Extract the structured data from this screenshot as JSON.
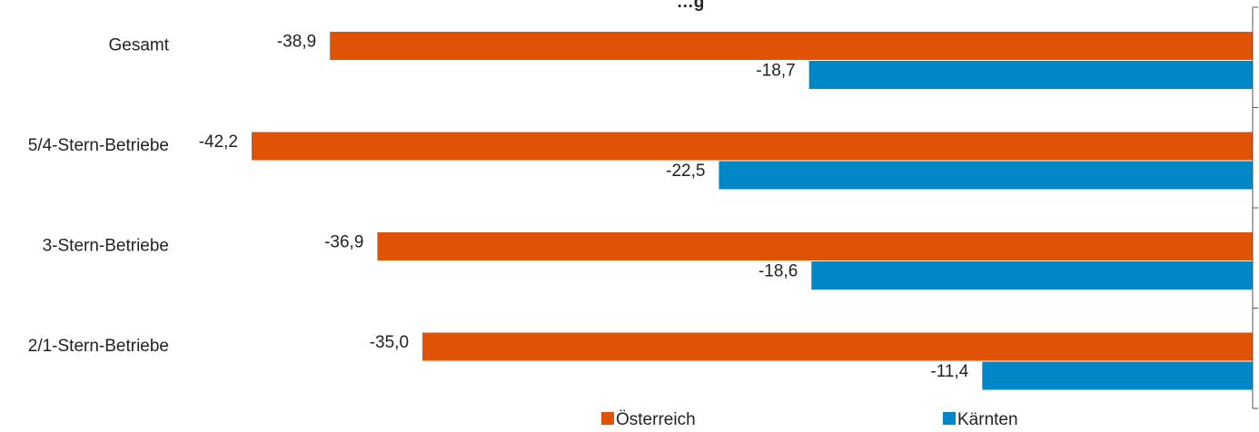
{
  "chart_data": {
    "type": "bar",
    "orientation": "horizontal",
    "title": "…g",
    "categories": [
      "Gesamt",
      "5/4-Stern-Betriebe",
      "3-Stern-Betriebe",
      "2/1-Stern-Betriebe"
    ],
    "series": [
      {
        "name": "Österreich",
        "values": [
          -38.9,
          -42.2,
          -36.9,
          -35.0
        ],
        "labels": [
          "-38,9",
          "-42,2",
          "-36,9",
          "-35,0"
        ]
      },
      {
        "name": "Kärnten",
        "values": [
          -18.7,
          -22.5,
          -18.6,
          -11.4
        ],
        "labels": [
          "-18,7",
          "-22,5",
          "-18,6",
          "-11,4"
        ]
      }
    ],
    "xlim": [
      -42.2,
      0
    ],
    "grid": false,
    "legend_position": "bottom"
  },
  "colors": {
    "oesterreich": "#E05206",
    "kaernten": "#0087C8",
    "axis": "#555555"
  }
}
